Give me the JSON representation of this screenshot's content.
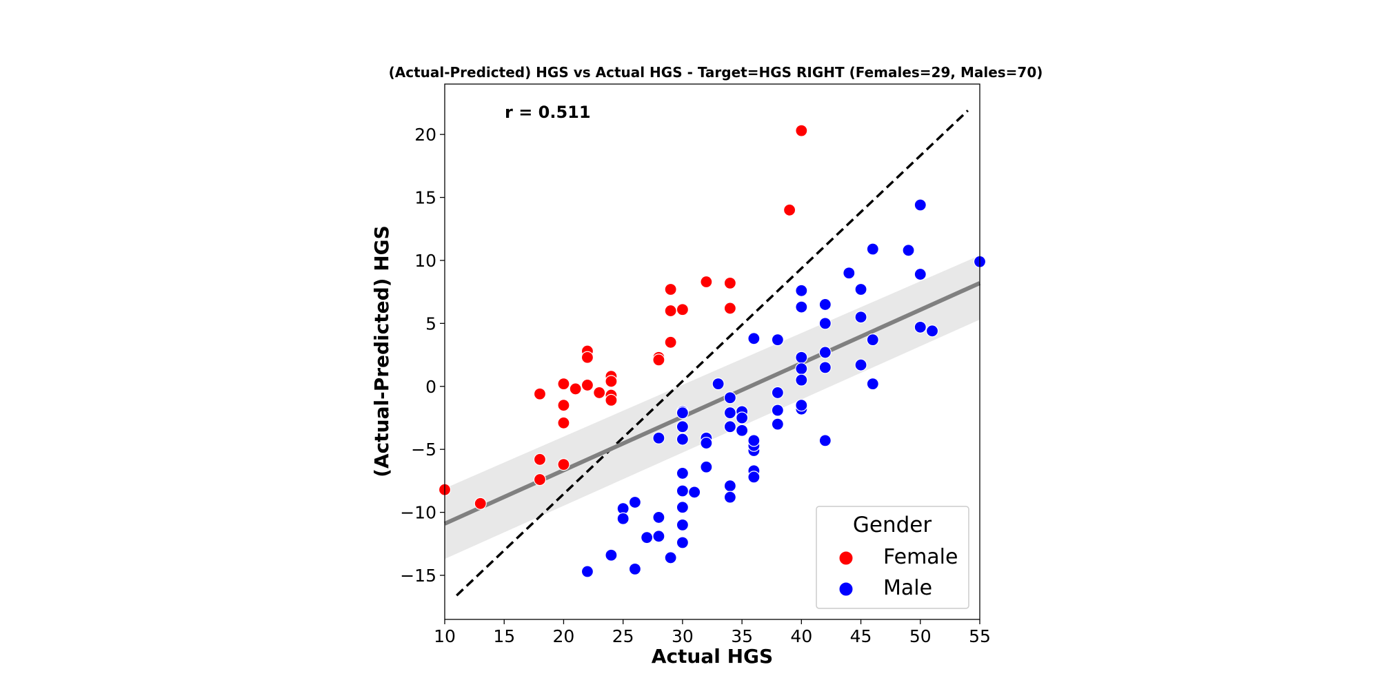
{
  "chart_data": {
    "type": "scatter",
    "title": "(Actual-Predicted) HGS vs Actual HGS - Target=HGS RIGHT (Females=29, Males=70)",
    "xlabel": "Actual HGS",
    "ylabel": "(Actual-Predicted) HGS",
    "xlim": [
      10,
      55
    ],
    "ylim": [
      -18.5,
      24
    ],
    "xticks": [
      10,
      15,
      20,
      25,
      30,
      35,
      40,
      45,
      50,
      55
    ],
    "yticks": [
      -15,
      -10,
      -5,
      0,
      5,
      10,
      15,
      20
    ],
    "grid": false,
    "annotation": "r = 0.511",
    "legend": {
      "title": "Gender",
      "placement": "lower-right",
      "entries": [
        {
          "label": "Female",
          "color": "#ff0000"
        },
        {
          "label": "Male",
          "color": "#0000ff"
        }
      ]
    },
    "identity_line": {
      "x": [
        11,
        54
      ],
      "y": [
        -16.6,
        21.9
      ],
      "style": "dashed",
      "color": "#000000"
    },
    "regression_line": {
      "x": [
        10,
        55
      ],
      "y": [
        -10.9,
        8.2
      ],
      "color": "#808080",
      "ci_low": [
        -13.7,
        5.3
      ],
      "ci_high": [
        -8.1,
        10.4
      ],
      "ci_color": "#e8e8e8"
    },
    "series": [
      {
        "name": "Female",
        "color": "#ff0000",
        "x": [
          10,
          13,
          18,
          18,
          18,
          20,
          20,
          20,
          20,
          21,
          22,
          22,
          22,
          23,
          24,
          24,
          24,
          24,
          28,
          28,
          29,
          29,
          29,
          30,
          32,
          34,
          34,
          39,
          40
        ],
        "y": [
          -8.2,
          -9.3,
          -0.6,
          -5.8,
          -7.4,
          0.2,
          -1.5,
          -2.9,
          -6.2,
          -0.2,
          2.8,
          2.3,
          0.1,
          -0.5,
          0.8,
          0.4,
          -0.7,
          -1.1,
          2.3,
          2.1,
          7.7,
          6.0,
          3.5,
          6.1,
          8.3,
          8.2,
          6.2,
          14.0,
          20.3
        ]
      },
      {
        "name": "Male",
        "color": "#0000ff",
        "x": [
          22,
          24,
          25,
          25,
          26,
          26,
          27,
          28,
          28,
          28,
          29,
          30,
          30,
          30,
          30,
          30,
          30,
          30,
          30,
          31,
          32,
          32,
          32,
          33,
          34,
          34,
          34,
          34,
          34,
          35,
          35,
          35,
          36,
          36,
          36,
          36,
          36,
          36,
          38,
          38,
          38,
          38,
          40,
          40,
          40,
          40,
          40,
          40,
          40,
          40,
          42,
          42,
          42,
          42,
          42,
          44,
          45,
          45,
          45,
          46,
          46,
          46,
          49,
          50,
          50,
          50,
          51,
          55,
          30,
          36
        ],
        "y": [
          -14.7,
          -13.4,
          -9.7,
          -10.5,
          -9.2,
          -14.5,
          -12.0,
          -4.1,
          -10.4,
          -11.9,
          -13.6,
          -2.0,
          -3.2,
          -4.2,
          -6.9,
          -8.3,
          -9.6,
          -11.0,
          -12.4,
          -8.4,
          -4.1,
          -4.5,
          -6.4,
          0.2,
          -0.9,
          -2.1,
          -3.2,
          -7.9,
          -8.8,
          -2.0,
          -2.5,
          -3.5,
          3.8,
          -4.3,
          -5.1,
          -6.7,
          -7.2,
          -4.7,
          3.7,
          -0.5,
          -1.9,
          -3.0,
          7.6,
          6.3,
          2.3,
          1.4,
          0.5,
          -1.6,
          -1.8,
          -1.5,
          6.5,
          5.0,
          2.7,
          1.5,
          -4.3,
          9.0,
          7.7,
          5.5,
          1.7,
          10.9,
          3.7,
          0.2,
          10.8,
          14.4,
          8.9,
          4.7,
          4.4,
          9.9,
          -2.1,
          -4.3
        ]
      }
    ]
  }
}
